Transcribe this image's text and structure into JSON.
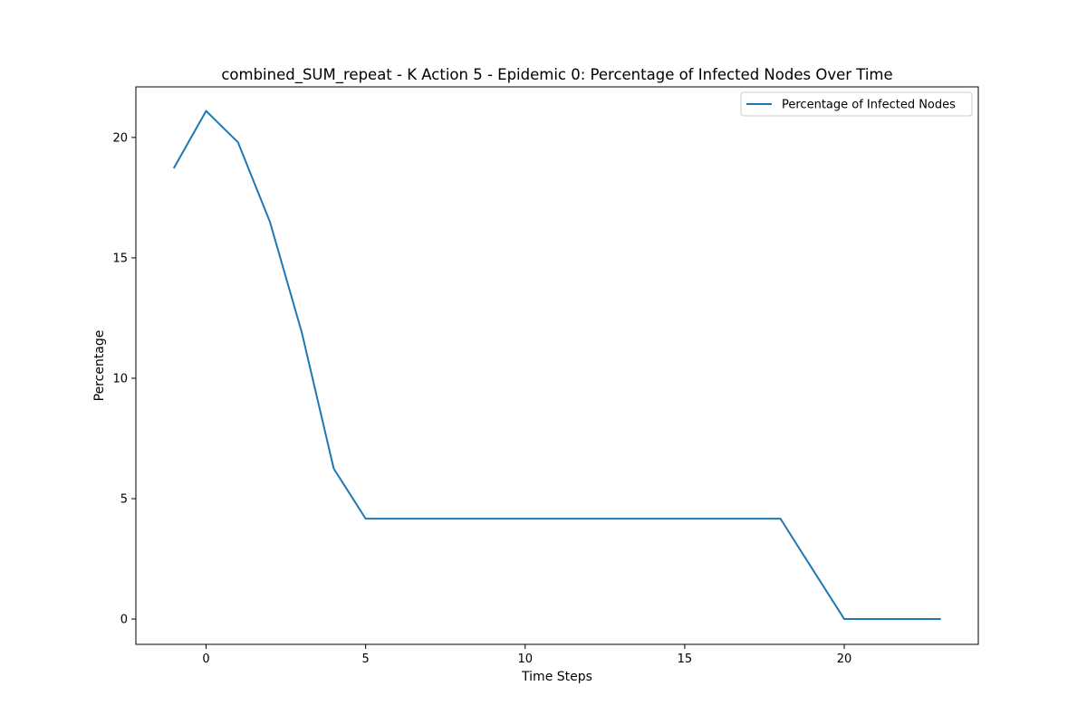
{
  "chart_data": {
    "type": "line",
    "title": "combined_SUM_repeat - K Action 5 - Epidemic 0: Percentage of Infected Nodes Over Time",
    "xlabel": "Time Steps",
    "ylabel": "Percentage",
    "xlim": [
      -2.2,
      24.2
    ],
    "ylim": [
      -1.05,
      22.1
    ],
    "xticks": [
      0,
      5,
      10,
      15,
      20
    ],
    "yticks": [
      0,
      5,
      10,
      15,
      20
    ],
    "grid": false,
    "legend": {
      "location": "upper right"
    },
    "series": [
      {
        "name": "Percentage of Infected Nodes",
        "color": "#1f77b4",
        "x": [
          -1,
          0,
          1,
          2,
          3,
          4,
          5,
          6,
          7,
          8,
          9,
          10,
          11,
          12,
          13,
          14,
          15,
          16,
          17,
          18,
          19,
          20,
          21,
          22,
          23
        ],
        "y": [
          18.75,
          21.1,
          19.8,
          16.5,
          11.9,
          6.25,
          4.17,
          4.17,
          4.17,
          4.17,
          4.17,
          4.17,
          4.17,
          4.17,
          4.17,
          4.17,
          4.17,
          4.17,
          4.17,
          4.17,
          2.08,
          0,
          0,
          0,
          0
        ]
      }
    ]
  }
}
